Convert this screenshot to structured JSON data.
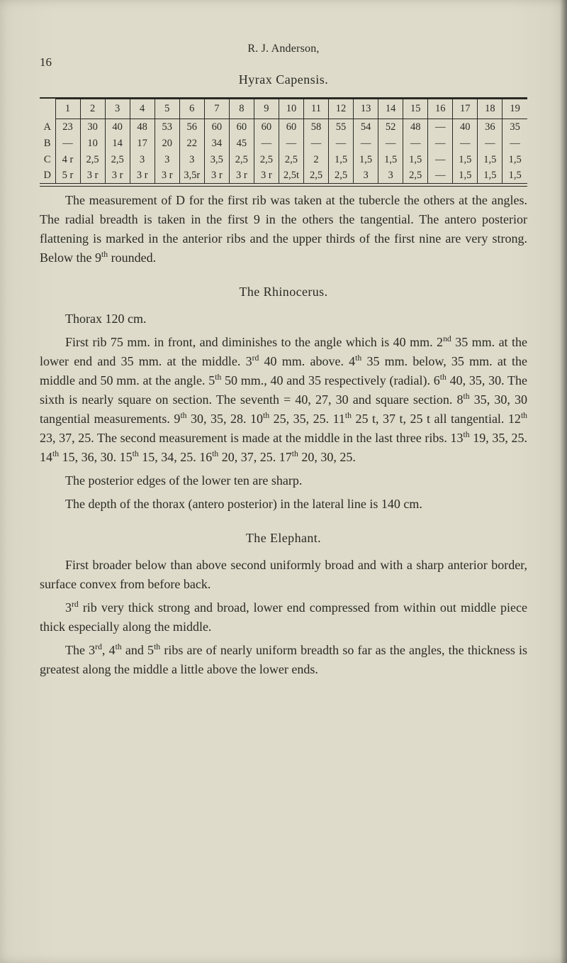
{
  "page": {
    "number": "16",
    "running_head": "R. J. Anderson,"
  },
  "hyrax": {
    "title": "Hyrax Capensis.",
    "headers": [
      "",
      "1",
      "2",
      "3",
      "4",
      "5",
      "6",
      "7",
      "8",
      "9",
      "10",
      "11",
      "12",
      "13",
      "14",
      "15",
      "16",
      "17",
      "18",
      "19"
    ],
    "rows": [
      {
        "label": "A",
        "cells": [
          "23",
          "30",
          "40",
          "48",
          "53",
          "56",
          "60",
          "60",
          "60",
          "60",
          "58",
          "55",
          "54",
          "52",
          "48",
          "—",
          "40",
          "36",
          "35"
        ]
      },
      {
        "label": "B",
        "cells": [
          "—",
          "10",
          "14",
          "17",
          "20",
          "22",
          "34",
          "45",
          "—",
          "—",
          "—",
          "—",
          "—",
          "—",
          "—",
          "—",
          "—",
          "—",
          "—"
        ]
      },
      {
        "label": "C",
        "cells": [
          "4 r",
          "2,5",
          "2,5",
          "3",
          "3",
          "3",
          "3,5",
          "2,5",
          "2,5",
          "2,5",
          "2",
          "1,5",
          "1,5",
          "1,5",
          "1,5",
          "—",
          "1,5",
          "1,5",
          "1,5"
        ]
      },
      {
        "label": "D",
        "cells": [
          "5 r",
          "3 r",
          "3 r",
          "3 r",
          "3 r",
          "3,5r",
          "3 r",
          "3 r",
          "3 r",
          "2,5t",
          "2,5",
          "2,5",
          "3",
          "3",
          "2,5",
          "—",
          "1,5",
          "1,5",
          "1,5"
        ]
      }
    ],
    "para": "The measurement of D for the first rib was taken at the tubercle the others at the angles. The radial breadth is taken in the first 9 in the others the tangential. The antero posterior flattening is marked in the anterior ribs and the upper thirds of the first nine are very strong. Below the 9<sup>th</sup> rounded."
  },
  "rhino": {
    "title": "The Rhinocerus.",
    "p1": "Thorax 120 cm.",
    "p2": "First rib 75 mm. in front, and diminishes to the angle which is 40 mm. 2<sup>nd</sup> 35 mm. at the lower end and 35 mm. at the middle. 3<sup>rd</sup> 40 mm. above. 4<sup>th</sup> 35 mm. below, 35 mm. at the middle and 50 mm. at the angle. 5<sup>th</sup> 50 mm., 40 and 35 respectively (radial). 6<sup>th</sup> 40, 35, 30. The sixth is nearly square on section. The seventh = 40, 27, 30 and square section. 8<sup>th</sup> 35, 30, 30 tangential measurements. 9<sup>th</sup> 30, 35, 28. 10<sup>th</sup> 25, 35, 25. 11<sup>th</sup> 25 t, 37 t, 25 t all tangential. 12<sup>th</sup> 23, 37, 25. The second measurement is made at the middle in the last three ribs. 13<sup>th</sup> 19, 35, 25. 14<sup>th</sup> 15, 36, 30. 15<sup>th</sup> 15, 34, 25. 16<sup>th</sup> 20, 37, 25. 17<sup>th</sup> 20, 30, 25.",
    "p3": "The posterior edges of the lower ten are sharp.",
    "p4": "The depth of the thorax (antero posterior) in the lateral line is 140 cm."
  },
  "elephant": {
    "title": "The Elephant.",
    "p1": "First broader below than above second uniformly broad and with a sharp anterior border, surface convex from before back.",
    "p2": "3<sup>rd</sup> rib very thick strong and broad, lower end compressed from within out middle piece thick especially along the middle.",
    "p3": "The 3<sup>rd</sup>, 4<sup>th</sup> and 5<sup>th</sup> ribs are of nearly uniform breadth so far as the angles, the thickness is greatest along the middle a little above the lower ends."
  }
}
